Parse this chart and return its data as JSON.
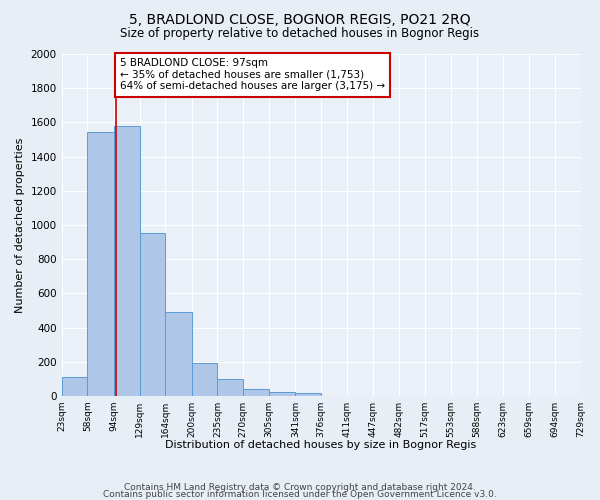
{
  "title": "5, BRADLOND CLOSE, BOGNOR REGIS, PO21 2RQ",
  "subtitle": "Size of property relative to detached houses in Bognor Regis",
  "xlabel": "Distribution of detached houses by size in Bognor Regis",
  "ylabel": "Number of detached properties",
  "bar_heights": [
    113,
    1543,
    1579,
    951,
    490,
    190,
    100,
    40,
    25,
    15,
    0,
    0,
    0,
    0,
    0,
    0,
    0,
    0,
    0,
    0
  ],
  "bin_edges": [
    23,
    58,
    94,
    129,
    164,
    200,
    235,
    270,
    305,
    341,
    376,
    411,
    447,
    482,
    517,
    553,
    588,
    623,
    659,
    694,
    729
  ],
  "bar_color": "#aec6e8",
  "bar_edge_color": "#5b9bd5",
  "property_size": 97,
  "property_line_color": "#cc0000",
  "annotation_line1": "5 BRADLOND CLOSE: 97sqm",
  "annotation_line2": "← 35% of detached houses are smaller (1,753)",
  "annotation_line3": "64% of semi-detached houses are larger (3,175) →",
  "annotation_box_color": "#ffffff",
  "annotation_box_edge": "#cc0000",
  "ylim": [
    0,
    2000
  ],
  "yticks": [
    0,
    200,
    400,
    600,
    800,
    1000,
    1200,
    1400,
    1600,
    1800,
    2000
  ],
  "tick_labels": [
    "23sqm",
    "58sqm",
    "94sqm",
    "129sqm",
    "164sqm",
    "200sqm",
    "235sqm",
    "270sqm",
    "305sqm",
    "341sqm",
    "376sqm",
    "411sqm",
    "447sqm",
    "482sqm",
    "517sqm",
    "553sqm",
    "588sqm",
    "623sqm",
    "659sqm",
    "694sqm",
    "729sqm"
  ],
  "footer_line1": "Contains HM Land Registry data © Crown copyright and database right 2024.",
  "footer_line2": "Contains public sector information licensed under the Open Government Licence v3.0.",
  "bg_color": "#e8eef5",
  "plot_bg_color": "#eaf0f8",
  "grid_color": "#ffffff",
  "title_fontsize": 10,
  "subtitle_fontsize": 8.5,
  "ylabel_fontsize": 8,
  "xlabel_fontsize": 8,
  "footer_fontsize": 6.5,
  "annotation_fontsize": 7.5,
  "tick_fontsize": 6.5,
  "ytick_fontsize": 7.5
}
